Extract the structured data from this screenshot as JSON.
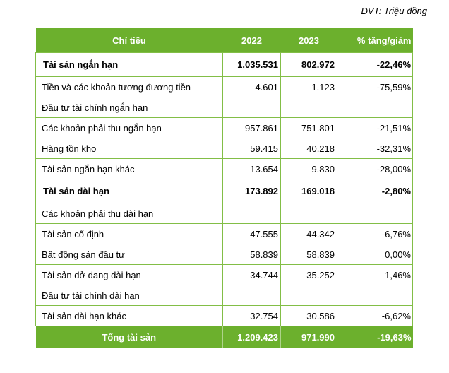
{
  "page": {
    "unit_note": "ĐVT: Triệu đồng"
  },
  "colors": {
    "header_green": "#6CB02D",
    "border_green": "#82BE46",
    "header_text": "#ffffff",
    "body_text": "#000000"
  },
  "table": {
    "headers": {
      "label": "Chỉ tiêu",
      "y2022": "2022",
      "y2023": "2023",
      "pct": "% tăng/giảm"
    },
    "rows": [
      {
        "label": "Tài sản ngắn hạn",
        "v2022": "1.035.531",
        "v2023": "802.972",
        "pct": "-22,46%",
        "bold": true
      },
      {
        "label": "Tiền và các khoản tương đương tiền",
        "v2022": "4.601",
        "v2023": "1.123",
        "pct": "-75,59%",
        "bold": false
      },
      {
        "label": "Đầu tư tài chính ngắn hạn",
        "v2022": "",
        "v2023": "",
        "pct": "",
        "bold": false
      },
      {
        "label": "Các khoản phải thu ngắn hạn",
        "v2022": "957.861",
        "v2023": "751.801",
        "pct": "-21,51%",
        "bold": false
      },
      {
        "label": "Hàng tồn kho",
        "v2022": "59.415",
        "v2023": "40.218",
        "pct": "-32,31%",
        "bold": false
      },
      {
        "label": "Tài sản ngắn hạn khác",
        "v2022": "13.654",
        "v2023": "9.830",
        "pct": "-28,00%",
        "bold": false
      },
      {
        "label": "Tài sản dài hạn",
        "v2022": "173.892",
        "v2023": "169.018",
        "pct": "-2,80%",
        "bold": true
      },
      {
        "label": "Các khoản phải thu dài hạn",
        "v2022": "",
        "v2023": "",
        "pct": "",
        "bold": false
      },
      {
        "label": "Tài sản cố định",
        "v2022": "47.555",
        "v2023": "44.342",
        "pct": "-6,76%",
        "bold": false
      },
      {
        "label": "Bất động sản đầu tư",
        "v2022": "58.839",
        "v2023": "58.839",
        "pct": "0,00%",
        "bold": false
      },
      {
        "label": "Tài sản dở dang dài hạn",
        "v2022": "34.744",
        "v2023": "35.252",
        "pct": "1,46%",
        "bold": false
      },
      {
        "label": "Đầu tư tài chính dài hạn",
        "v2022": "",
        "v2023": "",
        "pct": "",
        "bold": false
      },
      {
        "label": "Tài sản dài hạn khác",
        "v2022": "32.754",
        "v2023": "30.586",
        "pct": "-6,62%",
        "bold": false
      }
    ],
    "footer": {
      "label": "Tổng tài sản",
      "v2022": "1.209.423",
      "v2023": "971.990",
      "pct": "-19,63%"
    }
  }
}
